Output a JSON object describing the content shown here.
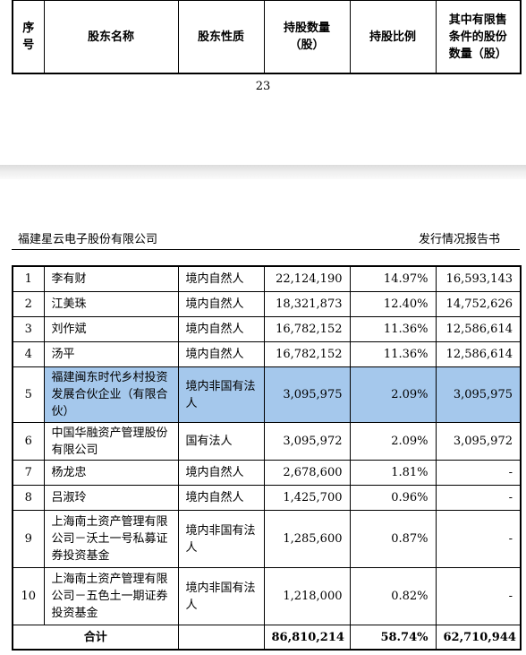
{
  "top_table": {
    "headers": [
      "序\n号",
      "股东名称",
      "股东性质",
      "持股数量\n（股）",
      "持股比例",
      "其中有限售\n条件的股份\n数量（股）"
    ]
  },
  "page_number": "23",
  "doc_header": {
    "company": "福建星云电子股份有限公司",
    "title": "发行情况报告书"
  },
  "rows": [
    {
      "no": "1",
      "name": "李有财",
      "type": "境内自然人",
      "shares": "22,124,190",
      "ratio": "14.97%",
      "restricted": "16,593,143"
    },
    {
      "no": "2",
      "name": "江美珠",
      "type": "境内自然人",
      "shares": "18,321,873",
      "ratio": "12.40%",
      "restricted": "14,752,626"
    },
    {
      "no": "3",
      "name": "刘作斌",
      "type": "境内自然人",
      "shares": "16,782,152",
      "ratio": "11.36%",
      "restricted": "12,586,614"
    },
    {
      "no": "4",
      "name": "汤平",
      "type": "境内自然人",
      "shares": "16,782,152",
      "ratio": "11.36%",
      "restricted": "12,586,614"
    },
    {
      "no": "5",
      "name": "福建闽东时代乡村投资发展合伙企业（有限合伙）",
      "type": "境内非国有法人",
      "shares": "3,095,975",
      "ratio": "2.09%",
      "restricted": "3,095,975"
    },
    {
      "no": "6",
      "name": "中国华融资产管理股份有限公司",
      "type": "国有法人",
      "shares": "3,095,972",
      "ratio": "2.09%",
      "restricted": "3,095,972"
    },
    {
      "no": "7",
      "name": "杨龙忠",
      "type": "境内自然人",
      "shares": "2,678,600",
      "ratio": "1.81%",
      "restricted": "-"
    },
    {
      "no": "8",
      "name": "吕淑玲",
      "type": "境内自然人",
      "shares": "1,425,700",
      "ratio": "0.96%",
      "restricted": "-"
    },
    {
      "no": "9",
      "name": "上海南土资产管理有限公司－沃土一号私募证券投资基金",
      "type": "境内非国有法人",
      "shares": "1,285,600",
      "ratio": "0.87%",
      "restricted": "-"
    },
    {
      "no": "10",
      "name": "上海南土资产管理有限公司－五色土一期证券投资基金",
      "type": "境内非国有法人",
      "shares": "1,218,000",
      "ratio": "0.82%",
      "restricted": "-"
    }
  ],
  "total": {
    "label": "合计",
    "shares": "86,810,214",
    "ratio": "58.74%",
    "restricted": "62,710,944"
  }
}
